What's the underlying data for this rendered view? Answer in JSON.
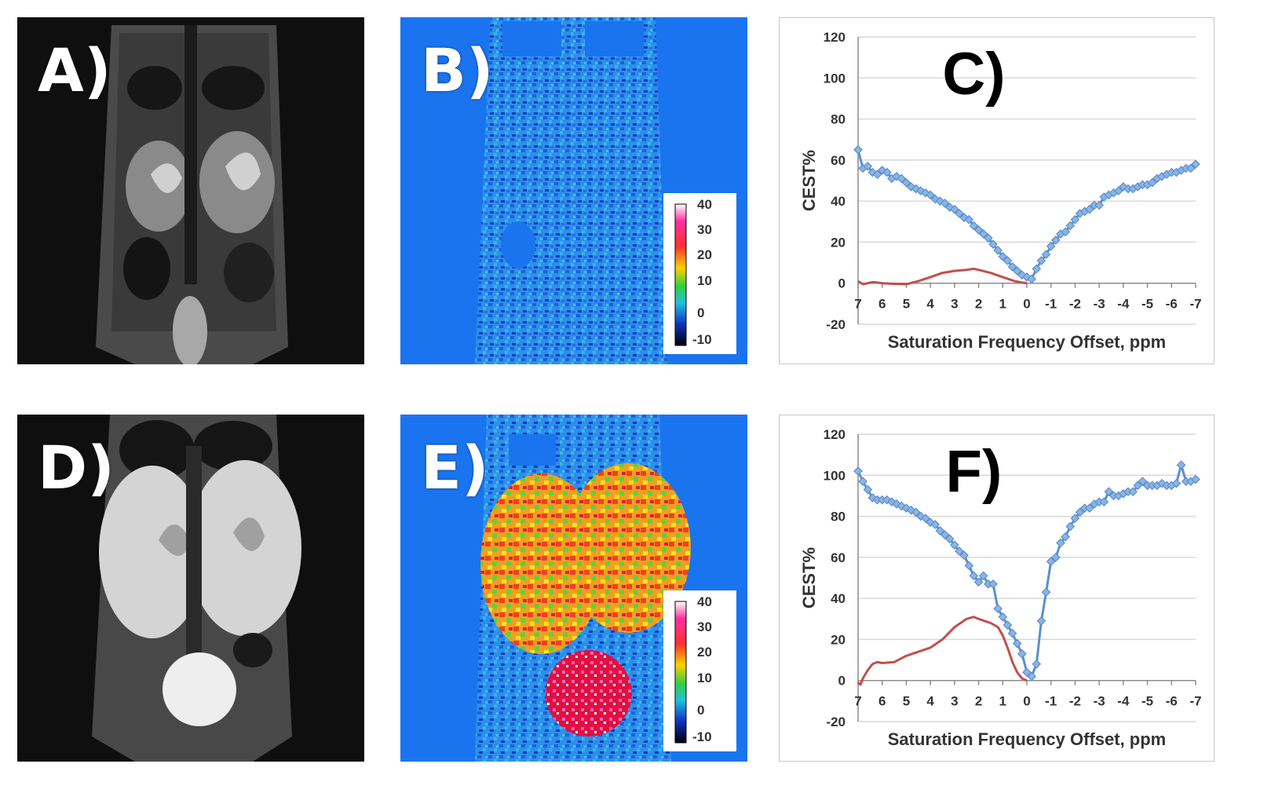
{
  "panels": {
    "A": {
      "label": "A)"
    },
    "B": {
      "label": "B)",
      "colorbar_ticks": [
        "40",
        "30",
        "20",
        "10",
        "0",
        "-10"
      ]
    },
    "C": {
      "label": "C)"
    },
    "D": {
      "label": "D)"
    },
    "E": {
      "label": "E)",
      "colorbar_ticks": [
        "40",
        "30",
        "20",
        "10",
        "0",
        "-10"
      ]
    },
    "F": {
      "label": "F)"
    }
  },
  "colors": {
    "blue_series": "#5b8fcf",
    "red_series": "#c0504d",
    "map_background": "#1a74f0",
    "grid": "#d9d9d9"
  },
  "chart_data": [
    {
      "panel": "C",
      "type": "line",
      "title": "C)",
      "xlabel": "Saturation Frequency Offset, ppm",
      "ylabel": "CEST%",
      "xlim": [
        7,
        -7
      ],
      "ylim": [
        -20,
        120
      ],
      "xticks": [
        7,
        6,
        5,
        4,
        3,
        2,
        1,
        0,
        -1,
        -2,
        -3,
        -4,
        -5,
        -6,
        -7
      ],
      "yticks": [
        -20,
        0,
        20,
        40,
        60,
        80,
        100,
        120
      ],
      "grid": true,
      "series": [
        {
          "name": "blue",
          "marker": "diamond",
          "x": [
            7,
            6.8,
            6.6,
            6.4,
            6.2,
            6,
            5.8,
            5.6,
            5.4,
            5.2,
            5,
            4.8,
            4.6,
            4.4,
            4.2,
            4,
            3.8,
            3.6,
            3.4,
            3.2,
            3,
            2.8,
            2.6,
            2.4,
            2.2,
            2,
            1.8,
            1.6,
            1.4,
            1.2,
            1,
            0.8,
            0.6,
            0.4,
            0.2,
            0,
            -0.2,
            -0.4,
            -0.6,
            -0.8,
            -1,
            -1.2,
            -1.4,
            -1.6,
            -1.8,
            -2,
            -2.2,
            -2.4,
            -2.6,
            -2.8,
            -3,
            -3.2,
            -3.4,
            -3.6,
            -3.8,
            -4,
            -4.2,
            -4.4,
            -4.6,
            -4.8,
            -5,
            -5.2,
            -5.4,
            -5.6,
            -5.8,
            -6,
            -6.2,
            -6.4,
            -6.6,
            -6.8,
            -7
          ],
          "y": [
            65,
            56,
            57,
            54,
            53,
            55,
            54,
            51,
            52,
            51,
            49,
            47,
            46,
            45,
            44,
            43,
            41,
            40,
            39,
            37,
            36,
            34,
            32,
            31,
            28,
            26,
            24,
            22,
            19,
            16,
            13,
            11,
            8,
            6,
            4,
            3,
            2,
            7,
            11,
            14,
            18,
            21,
            24,
            25,
            28,
            31,
            34,
            35,
            36,
            38,
            38,
            42,
            43,
            44,
            45,
            47,
            46,
            46,
            47,
            48,
            48,
            49,
            51,
            52,
            53,
            54,
            54,
            55,
            56,
            56,
            58
          ]
        },
        {
          "name": "red",
          "marker": "none",
          "x": [
            7,
            6.8,
            6.6,
            6.4,
            6.2,
            6,
            5.5,
            5,
            4.5,
            4,
            3.5,
            3,
            2.5,
            2.2,
            2,
            1.5,
            1,
            0.5,
            0.2,
            0
          ],
          "y": [
            1,
            -0.5,
            0,
            0.5,
            0.3,
            0,
            -0.3,
            -0.5,
            1,
            3,
            5,
            6,
            6.5,
            7,
            6.5,
            5,
            3,
            1,
            0.3,
            0
          ]
        }
      ]
    },
    {
      "panel": "F",
      "type": "line",
      "title": "F)",
      "xlabel": "Saturation Frequency Offset, ppm",
      "ylabel": "CEST%",
      "xlim": [
        7,
        -7
      ],
      "ylim": [
        -20,
        120
      ],
      "xticks": [
        7,
        6,
        5,
        4,
        3,
        2,
        1,
        0,
        -1,
        -2,
        -3,
        -4,
        -5,
        -6,
        -7
      ],
      "yticks": [
        -20,
        0,
        20,
        40,
        60,
        80,
        100,
        120
      ],
      "grid": true,
      "series": [
        {
          "name": "blue",
          "marker": "diamond",
          "x": [
            7,
            6.8,
            6.6,
            6.4,
            6.2,
            6,
            5.8,
            5.6,
            5.4,
            5.2,
            5,
            4.8,
            4.6,
            4.4,
            4.2,
            4,
            3.8,
            3.6,
            3.4,
            3.2,
            3,
            2.8,
            2.6,
            2.4,
            2.2,
            2,
            1.8,
            1.6,
            1.4,
            1.2,
            1,
            0.8,
            0.6,
            0.4,
            0.2,
            0,
            -0.2,
            -0.4,
            -0.6,
            -0.8,
            -1,
            -1.2,
            -1.4,
            -1.6,
            -1.8,
            -2,
            -2.2,
            -2.4,
            -2.6,
            -2.8,
            -3,
            -3.2,
            -3.4,
            -3.6,
            -3.8,
            -4,
            -4.2,
            -4.4,
            -4.6,
            -4.8,
            -5,
            -5.2,
            -5.4,
            -5.6,
            -5.8,
            -6,
            -6.2,
            -6.4,
            -6.6,
            -6.8,
            -7
          ],
          "y": [
            102,
            97,
            93,
            89,
            88,
            88,
            88,
            87,
            86,
            85,
            84,
            83,
            82,
            80,
            79,
            77,
            76,
            73,
            71,
            69,
            66,
            63,
            61,
            56,
            51,
            48,
            51,
            47,
            47,
            35,
            31,
            27,
            23,
            18,
            13,
            4,
            2,
            8,
            29,
            43,
            58,
            60,
            67,
            70,
            75,
            79,
            82,
            84,
            84,
            86,
            87,
            87,
            92,
            90,
            90,
            91,
            92,
            92,
            95,
            97,
            95,
            95,
            95,
            96,
            95,
            95,
            96,
            105,
            97,
            97,
            98
          ]
        },
        {
          "name": "red",
          "marker": "none",
          "x": [
            7,
            6.9,
            6.8,
            6.6,
            6.4,
            6.2,
            6,
            5.5,
            5,
            4.5,
            4,
            3.5,
            3,
            2.5,
            2.2,
            2,
            1.5,
            1.2,
            1,
            0.8,
            0.6,
            0.4,
            0.2,
            0
          ],
          "y": [
            -1,
            -2,
            1,
            5,
            8,
            9,
            8.5,
            9,
            12,
            14,
            16,
            20,
            26,
            30,
            31,
            30,
            28,
            26,
            22,
            16,
            9,
            4,
            1,
            0
          ]
        }
      ]
    }
  ]
}
